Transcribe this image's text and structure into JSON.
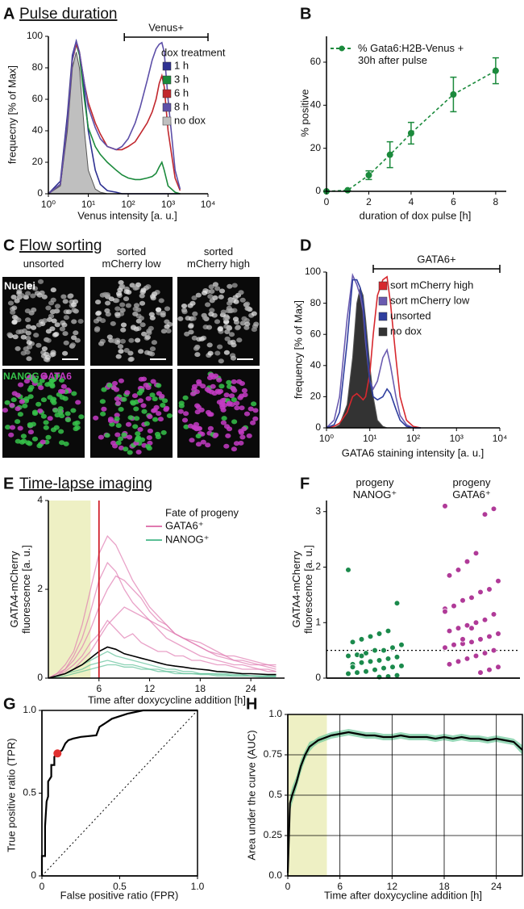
{
  "chart_data": [
    {
      "type": "line",
      "label": "A",
      "title": "Pulse duration",
      "x_label": "Venus intensity [a. u.]",
      "y_label": "frequecny [% of Max]",
      "x_scale": "log",
      "xlim": [
        1,
        10000
      ],
      "ylim": [
        0,
        100
      ],
      "xticks": [
        {
          "value": 1,
          "label": "10⁰"
        },
        {
          "value": 10,
          "label": "10¹"
        },
        {
          "value": 100,
          "label": "10²"
        },
        {
          "value": 1000,
          "label": "10³"
        },
        {
          "value": 10000,
          "label": "10⁴"
        }
      ],
      "yticks": [
        0,
        20,
        40,
        60,
        80,
        100
      ],
      "bracket": [
        80,
        10000
      ],
      "bracket_label": "Venus+",
      "legend_title": "dox treatment",
      "legend_marker": "square",
      "x": [
        1,
        2,
        3,
        4,
        5,
        6,
        8,
        10,
        15,
        20,
        30,
        50,
        70,
        100,
        150,
        200,
        300,
        400,
        500,
        600,
        700,
        800,
        1000,
        1500,
        2000
      ],
      "series": [
        {
          "name": "1 h",
          "color": "#2e3192",
          "values": [
            0,
            8,
            50,
            88,
            97,
            90,
            65,
            40,
            15,
            6,
            2,
            1,
            0,
            0,
            0,
            0,
            0,
            0,
            0,
            0,
            0,
            0,
            0,
            0,
            0
          ]
        },
        {
          "name": "3 h",
          "color": "#1b8a3c",
          "values": [
            0,
            6,
            45,
            85,
            95,
            88,
            60,
            42,
            30,
            25,
            20,
            15,
            12,
            10,
            9,
            9,
            10,
            11,
            13,
            17,
            20,
            15,
            5,
            1,
            0
          ]
        },
        {
          "name": "6 h",
          "color": "#c1272d",
          "values": [
            0,
            6,
            45,
            85,
            95,
            90,
            70,
            58,
            45,
            38,
            30,
            28,
            28,
            30,
            33,
            38,
            45,
            52,
            60,
            70,
            75,
            68,
            40,
            10,
            2
          ]
        },
        {
          "name": "8 h",
          "color": "#5d4fa8",
          "values": [
            0,
            6,
            45,
            85,
            97,
            90,
            70,
            55,
            42,
            35,
            30,
            28,
            30,
            35,
            45,
            55,
            72,
            85,
            92,
            95,
            96,
            90,
            60,
            15,
            3
          ]
        },
        {
          "name": "no dox",
          "color": "#bfbfbf",
          "filled": true,
          "values": [
            0,
            5,
            40,
            80,
            90,
            80,
            40,
            15,
            3,
            1,
            0,
            0,
            0,
            0,
            0,
            0,
            0,
            0,
            0,
            0,
            0,
            0,
            0,
            0,
            0
          ]
        }
      ]
    },
    {
      "type": "line",
      "label": "B",
      "x_label": "duration of dox pulse [h]",
      "y_label": "% positive",
      "xlim": [
        0,
        8.5
      ],
      "ylim": [
        0,
        72
      ],
      "xticks": [
        0,
        2,
        4,
        6,
        8
      ],
      "yticks": [
        0,
        20,
        40,
        60
      ],
      "legend_marker": "line",
      "x": [
        0,
        1,
        2,
        3,
        4,
        6,
        8
      ],
      "series": [
        {
          "name": "% Gata6:H2B-Venus + 30h after pulse",
          "color": "#1b8a3c",
          "dashed": true,
          "markers": true,
          "values": [
            0,
            0.5,
            7.5,
            17,
            27,
            45,
            56
          ],
          "errors": [
            0,
            0,
            2,
            6,
            5,
            8,
            6
          ]
        }
      ]
    },
    {
      "type": "line",
      "label": "D",
      "x_label": "GATA6 staining intensity [a. u.]",
      "y_label": "frequency [% of Max]",
      "x_scale": "log",
      "xlim": [
        1,
        10000
      ],
      "ylim": [
        0,
        100
      ],
      "xticks": [
        {
          "value": 1,
          "label": "10⁰"
        },
        {
          "value": 10,
          "label": "10¹"
        },
        {
          "value": 100,
          "label": "10²"
        },
        {
          "value": 1000,
          "label": "10³"
        },
        {
          "value": 10000,
          "label": "10⁴"
        }
      ],
      "yticks": [
        0,
        20,
        40,
        60,
        80,
        100
      ],
      "bracket": [
        12,
        10000
      ],
      "bracket_label": "GATA6+",
      "legend_marker": "square",
      "x": [
        1,
        1.5,
        2,
        3,
        4,
        5,
        6,
        7,
        8,
        10,
        12,
        15,
        20,
        25,
        30,
        40,
        50,
        70,
        100,
        150
      ],
      "series": [
        {
          "name": "sort mCherry high",
          "color": "#d7282e",
          "values": [
            0,
            1,
            3,
            10,
            20,
            22,
            20,
            18,
            20,
            35,
            60,
            85,
            95,
            97,
            80,
            45,
            20,
            5,
            1,
            0
          ]
        },
        {
          "name": "sort mCherry low",
          "color": "#6a5bb0",
          "values": [
            0,
            5,
            20,
            70,
            98,
            92,
            85,
            75,
            55,
            30,
            25,
            30,
            45,
            50,
            40,
            20,
            8,
            2,
            0,
            0
          ]
        },
        {
          "name": "unsorted",
          "color": "#2f3e9e",
          "values": [
            0,
            2,
            10,
            55,
            95,
            95,
            90,
            80,
            60,
            30,
            20,
            18,
            20,
            25,
            22,
            12,
            5,
            1,
            0,
            0
          ]
        },
        {
          "name": "no dox",
          "color": "#333333",
          "filled": true,
          "values": [
            0,
            0,
            2,
            15,
            45,
            80,
            90,
            85,
            70,
            40,
            20,
            5,
            1,
            0,
            0,
            0,
            0,
            0,
            0,
            0
          ]
        }
      ]
    },
    {
      "type": "multiline",
      "label": "E",
      "title": "Time-lapse imaging",
      "x_label": "Time after doxycycline addition [h]",
      "y_label": "GATA4-mCherry fluorescence [a. u.]",
      "xlim": [
        0,
        28
      ],
      "ylim": [
        0,
        4
      ],
      "xticks": [
        6,
        12,
        18,
        24
      ],
      "yticks": [
        0,
        2,
        4
      ],
      "highlight_span": [
        0,
        5
      ],
      "marker_line": 6,
      "legend_title": "Fate of progeny",
      "x": [
        0,
        1,
        2,
        3,
        4,
        5,
        6,
        7,
        8,
        9,
        10,
        11,
        12,
        13,
        14,
        15,
        16,
        17,
        18,
        19,
        20,
        21,
        22,
        23,
        24,
        25,
        26,
        27
      ],
      "series": [
        {
          "name": "GATA6⁺",
          "color": "#e07ab0",
          "traces": [
            [
              0,
              0.1,
              0.3,
              0.6,
              1.2,
              2.0,
              2.8,
              3.2,
              3.0,
              2.6,
              2.2,
              1.9,
              1.6,
              1.4,
              1.2,
              1.0,
              0.9,
              0.8,
              0.7,
              0.6,
              0.5,
              0.45,
              0.4,
              0.35,
              0.3,
              0.3,
              0.25,
              0.2
            ],
            [
              0,
              0.05,
              0.2,
              0.4,
              0.7,
              1.1,
              1.6,
              2.0,
              2.3,
              2.2,
              2.0,
              1.8,
              1.5,
              1.3,
              1.2,
              1.0,
              0.9,
              0.8,
              0.7,
              0.6,
              0.55,
              0.5,
              0.4,
              0.4,
              0.35,
              0.3,
              0.3,
              0.25
            ],
            [
              0,
              0.05,
              0.1,
              0.2,
              0.4,
              0.6,
              0.9,
              1.2,
              1.4,
              1.6,
              1.5,
              1.4,
              1.3,
              1.2,
              1.1,
              1.0,
              0.9,
              0.85,
              0.8,
              0.7,
              0.6,
              0.5,
              0.5,
              0.45,
              0.4,
              0.35,
              0.3,
              0.3
            ],
            [
              0,
              0.1,
              0.2,
              0.5,
              0.9,
              1.5,
              2.2,
              2.6,
              2.4,
              2.0,
              1.7,
              1.5,
              1.3,
              1.1,
              0.9,
              0.8,
              0.7,
              0.6,
              0.5,
              0.45,
              0.4,
              0.35,
              0.3,
              0.3,
              0.25,
              0.2,
              0.2,
              0.15
            ],
            [
              0,
              0.05,
              0.15,
              0.3,
              0.5,
              0.8,
              1.0,
              1.3,
              1.1,
              0.9,
              1.0,
              0.8,
              0.7,
              0.6,
              0.6,
              0.5,
              0.5,
              0.4,
              0.4,
              0.35,
              0.3,
              0.3,
              0.25,
              0.2,
              0.2,
              0.2,
              0.15,
              0.15
            ]
          ]
        },
        {
          "name": "NANOG⁺",
          "color": "#5bbf96",
          "traces": [
            [
              0,
              0.05,
              0.1,
              0.15,
              0.2,
              0.3,
              0.35,
              0.4,
              0.35,
              0.3,
              0.3,
              0.25,
              0.2,
              0.2,
              0.15,
              0.15,
              0.1,
              0.1,
              0.1,
              0.1,
              0.08,
              0.08,
              0.05,
              0.05,
              0.05,
              0.05,
              0.05,
              0.05
            ],
            [
              0,
              0.05,
              0.1,
              0.2,
              0.3,
              0.4,
              0.5,
              0.6,
              0.5,
              0.45,
              0.4,
              0.35,
              0.3,
              0.25,
              0.2,
              0.2,
              0.15,
              0.15,
              0.1,
              0.1,
              0.1,
              0.1,
              0.08,
              0.08,
              0.05,
              0.05,
              0.05,
              0.05
            ],
            [
              0,
              0.02,
              0.05,
              0.1,
              0.15,
              0.2,
              0.25,
              0.3,
              0.3,
              0.25,
              0.25,
              0.2,
              0.2,
              0.15,
              0.15,
              0.1,
              0.1,
              0.1,
              0.08,
              0.08,
              0.05,
              0.05,
              0.05,
              0.05,
              0.05,
              0.03,
              0.03,
              0.03
            ]
          ]
        }
      ],
      "mean": {
        "color": "#000000",
        "values": [
          0,
          0.05,
          0.1,
          0.2,
          0.3,
          0.45,
          0.6,
          0.7,
          0.65,
          0.55,
          0.5,
          0.45,
          0.4,
          0.35,
          0.3,
          0.27,
          0.25,
          0.22,
          0.2,
          0.18,
          0.15,
          0.14,
          0.12,
          0.1,
          0.1,
          0.09,
          0.08,
          0.08
        ]
      }
    },
    {
      "type": "strip",
      "label": "F",
      "y_label": "GATA4-mCherry fluorescence [a. u.]",
      "ylim": [
        0,
        3.2
      ],
      "yticks": [
        0,
        1,
        2,
        3
      ],
      "threshold": 0.5,
      "categories": [
        "progeny NANOG⁺",
        "progeny GATA6⁺"
      ],
      "series": [
        {
          "color": "#1b8a4c",
          "values": [
            1.95,
            1.35,
            0.85,
            0.8,
            0.75,
            0.7,
            0.65,
            0.6,
            0.55,
            0.5,
            0.5,
            0.45,
            0.42,
            0.4,
            0.38,
            0.35,
            0.32,
            0.3,
            0.28,
            0.25,
            0.22,
            0.2,
            0.18,
            0.15,
            0.12,
            0.1,
            0.08,
            0.05,
            0.03,
            0.02,
            0.3,
            0.4,
            0.2,
            0.6
          ]
        },
        {
          "color": "#b03a98",
          "values": [
            3.1,
            3.05,
            2.95,
            2.25,
            2.1,
            1.95,
            1.85,
            1.75,
            1.6,
            1.55,
            1.45,
            1.4,
            1.3,
            1.25,
            1.15,
            1.05,
            1.0,
            0.95,
            0.9,
            0.85,
            0.8,
            0.75,
            0.7,
            0.65,
            0.62,
            0.6,
            0.55,
            0.5,
            0.45,
            0.4,
            0.35,
            0.3,
            0.25,
            0.2,
            0.15,
            0.1,
            0.9,
            0.7,
            0.6,
            1.2
          ]
        }
      ]
    },
    {
      "type": "line",
      "label": "G",
      "x_label": "False positive ratio (FPR)",
      "y_label": "True positive ratio (TPR)",
      "xlim": [
        0,
        1
      ],
      "ylim": [
        0,
        1
      ],
      "xticks": [
        0,
        0.5,
        {
          "value": 1,
          "label": "1.0"
        }
      ],
      "yticks": [
        0,
        0.5,
        {
          "value": 1,
          "label": "1.0"
        }
      ],
      "box": true,
      "x": [
        0,
        0,
        0.02,
        0.02,
        0.03,
        0.04,
        0.04,
        0.06,
        0.06,
        0.08,
        0.08,
        0.1,
        0.13,
        0.15,
        0.17,
        0.2,
        0.25,
        0.35,
        0.37,
        0.45,
        0.55,
        0.65,
        1
      ],
      "values": [
        0,
        0.12,
        0.12,
        0.3,
        0.45,
        0.48,
        0.57,
        0.6,
        0.67,
        0.67,
        0.72,
        0.74,
        0.76,
        0.8,
        0.82,
        0.83,
        0.84,
        0.85,
        0.9,
        0.95,
        0.98,
        1,
        1
      ],
      "color": "#000000",
      "highlight_point": {
        "x": 0.1,
        "y": 0.74,
        "color": "#e03030"
      }
    },
    {
      "type": "line",
      "label": "H",
      "x_label": "Time after doxycycline addition [h]",
      "y_label": "Area under the curve (AUC)",
      "xlim": [
        0,
        27
      ],
      "ylim": [
        0,
        1
      ],
      "xticks": [
        0,
        6,
        12,
        18,
        24
      ],
      "yticks": [
        {
          "value": 0,
          "label": "0.0"
        },
        0.25,
        0.5,
        0.75,
        {
          "value": 1,
          "label": "1.0"
        }
      ],
      "grid": true,
      "box": true,
      "highlight_span": [
        0,
        4.5
      ],
      "x": [
        0,
        0.25,
        0.5,
        1,
        1.5,
        2,
        2.5,
        3,
        3.5,
        4,
        5,
        6,
        7,
        8,
        9,
        10,
        11,
        12,
        13,
        14,
        15,
        16,
        17,
        18,
        19,
        20,
        21,
        22,
        23,
        24,
        25,
        26,
        27
      ],
      "values": [
        0.02,
        0.45,
        0.5,
        0.58,
        0.68,
        0.75,
        0.8,
        0.82,
        0.84,
        0.85,
        0.87,
        0.88,
        0.89,
        0.88,
        0.87,
        0.87,
        0.86,
        0.86,
        0.87,
        0.86,
        0.86,
        0.86,
        0.85,
        0.86,
        0.85,
        0.86,
        0.85,
        0.85,
        0.84,
        0.85,
        0.84,
        0.83,
        0.78
      ],
      "ci_low": [
        0.01,
        0.4,
        0.45,
        0.54,
        0.64,
        0.72,
        0.77,
        0.8,
        0.82,
        0.83,
        0.85,
        0.86,
        0.87,
        0.86,
        0.85,
        0.85,
        0.84,
        0.84,
        0.85,
        0.84,
        0.84,
        0.84,
        0.83,
        0.84,
        0.83,
        0.84,
        0.83,
        0.83,
        0.82,
        0.83,
        0.82,
        0.81,
        0.75
      ],
      "ci_high": [
        0.03,
        0.5,
        0.55,
        0.62,
        0.72,
        0.78,
        0.83,
        0.84,
        0.86,
        0.87,
        0.89,
        0.9,
        0.91,
        0.9,
        0.89,
        0.89,
        0.88,
        0.88,
        0.89,
        0.88,
        0.88,
        0.88,
        0.87,
        0.88,
        0.87,
        0.88,
        0.87,
        0.87,
        0.86,
        0.87,
        0.86,
        0.85,
        0.81
      ],
      "color": "#000000",
      "band_color": "#6cc79a"
    }
  ],
  "image_panel": {
    "label": "C",
    "title": "Flow sorting",
    "columns": [
      "unsorted",
      "sorted mCherry low",
      "sorted mCherry high"
    ],
    "nuclei_label": "Nuclei",
    "marker_labels": [
      "NANOG",
      "GATA6"
    ]
  }
}
